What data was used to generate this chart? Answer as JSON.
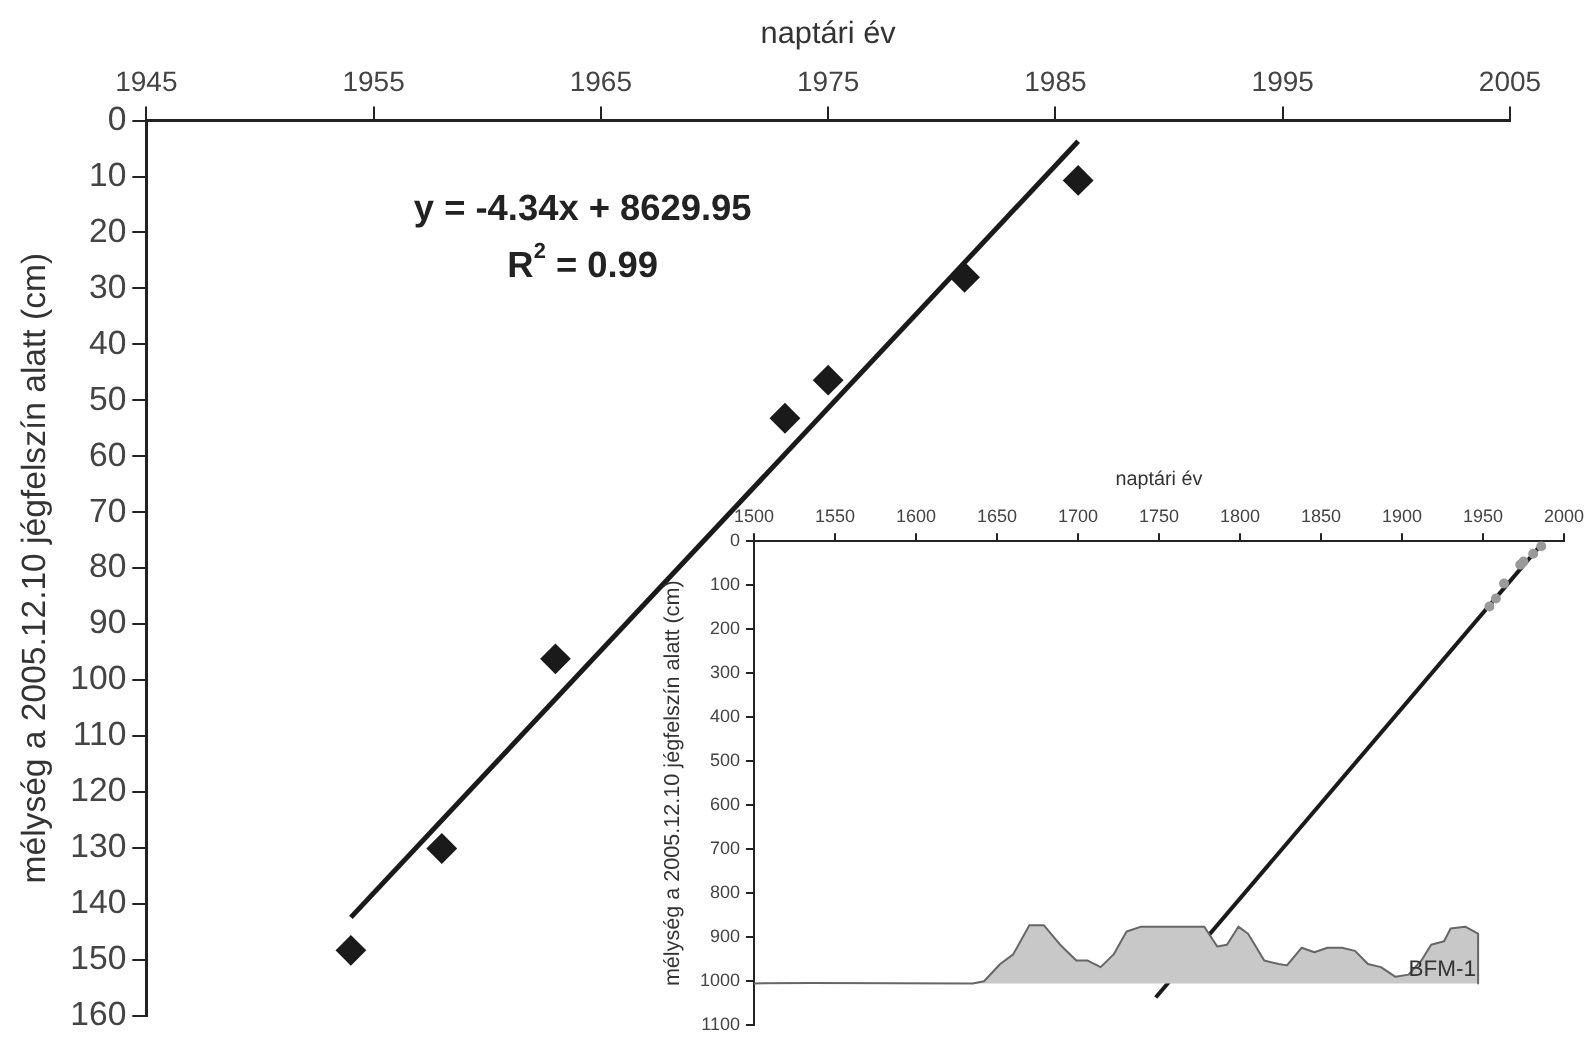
{
  "chart_data": [
    {
      "type": "scatter",
      "xlabel": "naptári év",
      "ylabel": "mélység a 2005.12.10 jégfelszín alatt (cm)",
      "xlim": [
        1945,
        2005
      ],
      "xticks": [
        1945,
        1955,
        1965,
        1975,
        1985,
        1995,
        2005
      ],
      "ylim": [
        160,
        0
      ],
      "yticks": [
        0,
        10,
        20,
        30,
        40,
        50,
        60,
        70,
        80,
        90,
        100,
        110,
        120,
        130,
        140,
        150,
        160
      ],
      "grid": false,
      "marker": "diamond",
      "annotations": [
        "y = -4.34x + 8629.95",
        "R$^{2}$ = 0.99"
      ],
      "series": [
        {
          "color": "#1a1a1a",
          "x": [
            1954,
            1958,
            1963,
            1973.1,
            1975,
            1981,
            1986
          ],
          "values": [
            148.3,
            130.1,
            96.2,
            53.2,
            46.4,
            28.0,
            10.7
          ]
        },
        {
          "type": "line",
          "color": "#1a1a1a",
          "marker": "none",
          "x": [
            1954,
            1986
          ],
          "values": [
            142.4,
            3.7
          ]
        }
      ]
    },
    {
      "type": "area",
      "xlabel": "naptári év",
      "ylabel": "mélység a 2005.12.10 jégfelszín alatt (cm)",
      "xlim": [
        1500,
        2000
      ],
      "xticks": [
        1500,
        1550,
        1600,
        1650,
        1700,
        1750,
        1800,
        1850,
        1900,
        1950,
        2000
      ],
      "ylim": [
        1100,
        0
      ],
      "yticks": [
        0,
        100,
        200,
        300,
        400,
        500,
        600,
        700,
        800,
        900,
        1000,
        1100
      ],
      "grid": false,
      "series": [
        {
          "name": "BFM-1",
          "color": "#c8c8c8",
          "x": [
            1500,
            1536,
            1635,
            1642,
            1652,
            1660,
            1670,
            1679,
            1689,
            1699,
            1706,
            1714,
            1722,
            1730,
            1739,
            1759,
            1778,
            1786,
            1792,
            1799,
            1805,
            1815,
            1824,
            1829,
            1838,
            1846,
            1854,
            1863,
            1871,
            1879,
            1887,
            1896,
            1904,
            1912,
            1918,
            1926,
            1930,
            1939,
            1947,
            1947
          ],
          "values": [
            1005,
            1004,
            1005,
            1000,
            961,
            939,
            873,
            873,
            917,
            953,
            953,
            968,
            939,
            887,
            876,
            876,
            876,
            921,
            917,
            876,
            892,
            953,
            961,
            964,
            924,
            934,
            924,
            924,
            931,
            961,
            968,
            990,
            985,
            953,
            917,
            909,
            880,
            876,
            892,
            1005
          ]
        },
        {
          "type": "scatter",
          "color": "#9a9a9a",
          "marker": "circle",
          "x": [
            1954,
            1958,
            1963,
            1973,
            1975,
            1981,
            1986
          ],
          "values": [
            148,
            130,
            96,
            53,
            46,
            28,
            11
          ]
        },
        {
          "type": "line",
          "color": "#1a1a1a",
          "marker": "none",
          "x": [
            1748,
            1986
          ],
          "values": [
            1037,
            7
          ]
        }
      ]
    }
  ]
}
